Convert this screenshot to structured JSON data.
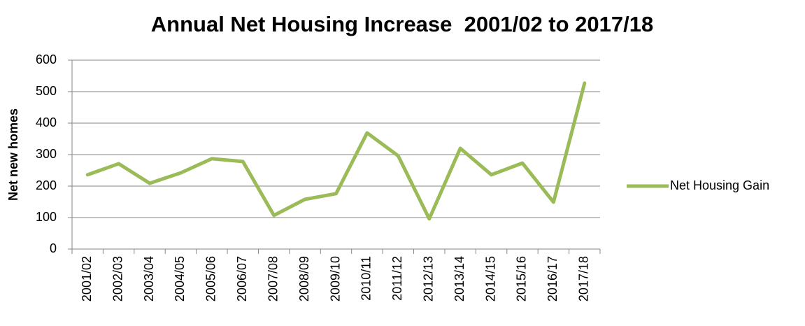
{
  "chart_data": {
    "type": "line",
    "title": "Annual Net Housing Increase  2001/02 to 2017/18",
    "y_label": "Net new homes",
    "categories": [
      "2001/02",
      "2002/03",
      "2003/04",
      "2004/05",
      "2005/06",
      "2006/07",
      "2007/08",
      "2008/09",
      "2009/10",
      "2010/11",
      "2011/12",
      "2012/13",
      "2013/14",
      "2014/15",
      "2015/16",
      "2016/17",
      "2017/18"
    ],
    "series": [
      {
        "name": "Net Housing Gain",
        "color": "#9bbb59",
        "values": [
          236,
          271,
          209,
          242,
          287,
          278,
          107,
          158,
          176,
          369,
          296,
          96,
          320,
          236,
          273,
          149,
          527
        ]
      }
    ],
    "ylim": [
      0,
      600
    ],
    "yticks": [
      0,
      100,
      200,
      300,
      400,
      500,
      600
    ],
    "grid": true,
    "legend": "right"
  }
}
